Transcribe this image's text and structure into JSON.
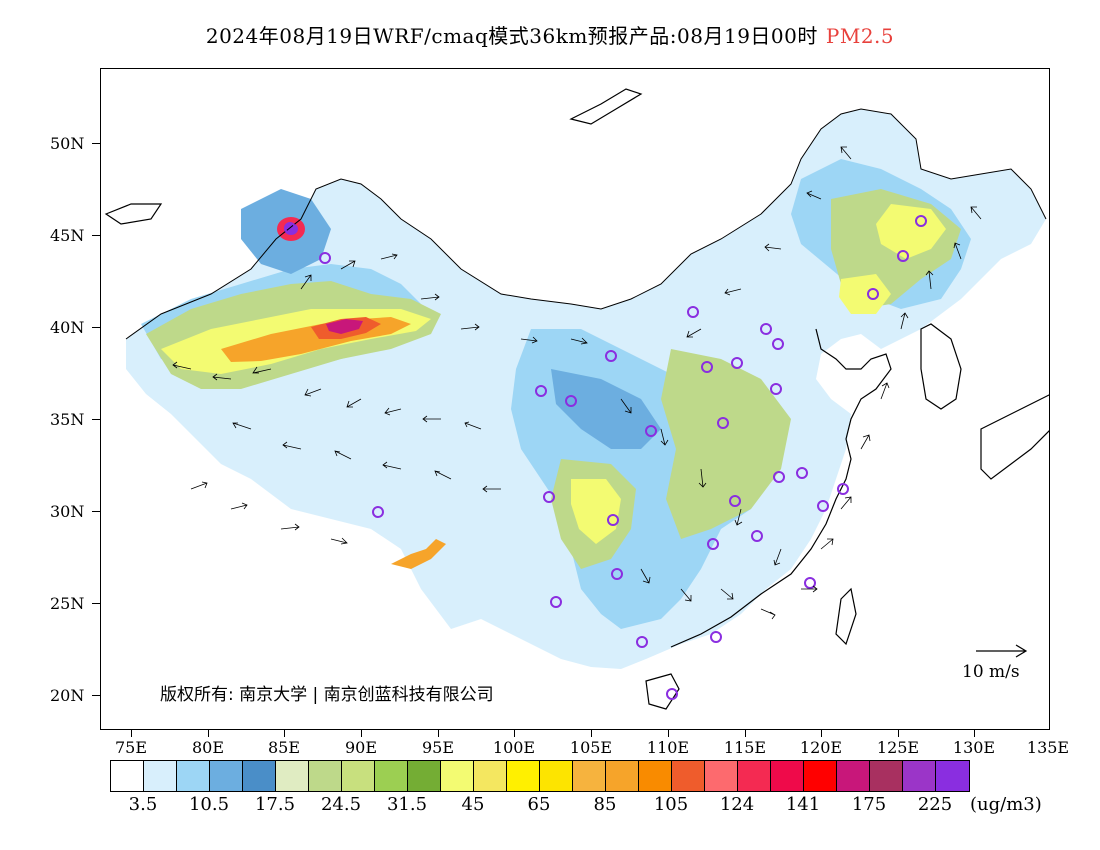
{
  "header": {
    "title": "2024年08月19日WRF/cmaq模式36km预报产品:08月19日00时",
    "pollutant": "PM2.5"
  },
  "map": {
    "lat_labels": [
      "50N",
      "45N",
      "40N",
      "35N",
      "30N",
      "25N",
      "20N"
    ],
    "lon_labels": [
      "75E",
      "80E",
      "85E",
      "90E",
      "95E",
      "100E",
      "105E",
      "110E",
      "115E",
      "120E",
      "125E",
      "130E",
      "135E"
    ],
    "lat_range": [
      18,
      54
    ],
    "lon_range": [
      73,
      135
    ],
    "copyright": "版权所有: 南京大学 | 南京创蓝科技有限公司",
    "reference_vector": "10 m/s"
  },
  "colorbar": {
    "colors": [
      "#ffffff",
      "#d8effc",
      "#9dd6f5",
      "#6caee0",
      "#4a8ec8",
      "#e0ecc2",
      "#bed98a",
      "#c8e07e",
      "#9ccf52",
      "#74ad34",
      "#f3fb72",
      "#f4e760",
      "#fff000",
      "#fde400",
      "#f6b33e",
      "#f6a42a",
      "#f98b00",
      "#ef5c2c",
      "#fd6a6e",
      "#f42a52",
      "#ef0a4a",
      "#ff0000",
      "#c8177a",
      "#a83060",
      "#9b35c8",
      "#8a2ee0"
    ],
    "labels": [
      "3.5",
      "10.5",
      "17.5",
      "24.5",
      "31.5",
      "45",
      "65",
      "85",
      "105",
      "124",
      "141",
      "175",
      "225"
    ],
    "unit": "(ug/m3)"
  }
}
